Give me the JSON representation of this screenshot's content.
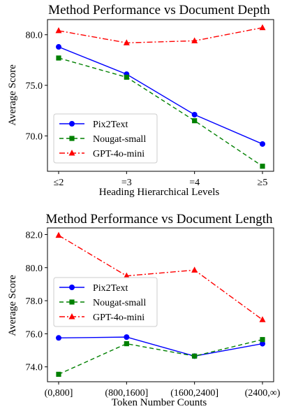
{
  "chart_data": [
    {
      "type": "line",
      "title": "Method Performance vs Document Depth",
      "xlabel": "Heading Hierarchical Levels",
      "ylabel": "Average Score",
      "categories": [
        "≤2",
        "=3",
        "=4",
        "≥5"
      ],
      "ylim": [
        66.5,
        81.5
      ],
      "yticks": [
        70.0,
        75.0,
        80.0
      ],
      "ytick_labels": [
        "70.0",
        "75.0",
        "80.0"
      ],
      "grid": false,
      "legend_position": "lower-left",
      "series": [
        {
          "name": "Pix2Text",
          "values": [
            78.8,
            76.1,
            72.1,
            69.2
          ],
          "color": "#0000ff",
          "dash": "solid",
          "marker": "circle"
        },
        {
          "name": "Nougat-small",
          "values": [
            77.7,
            75.8,
            71.5,
            67.0
          ],
          "color": "#008000",
          "dash": "dashed",
          "marker": "square"
        },
        {
          "name": "GPT-4o-mini",
          "values": [
            80.4,
            79.2,
            79.4,
            80.7
          ],
          "color": "#ff0000",
          "dash": "dashdot",
          "marker": "triangle"
        }
      ]
    },
    {
      "type": "line",
      "title": "Method Performance vs Document Length",
      "xlabel": "Token Number Counts",
      "ylabel": "Average Score",
      "categories": [
        "(0,800]",
        "(800,1600]",
        "(1600,2400]",
        "(2400,∞)"
      ],
      "ylim": [
        73.1,
        82.4
      ],
      "yticks": [
        74.0,
        76.0,
        78.0,
        80.0,
        82.0
      ],
      "ytick_labels": [
        "74.0",
        "76.0",
        "78.0",
        "80.0",
        "82.0"
      ],
      "grid": false,
      "legend_position": "center-left",
      "series": [
        {
          "name": "Pix2Text",
          "values": [
            75.75,
            75.8,
            74.65,
            75.4
          ],
          "color": "#0000ff",
          "dash": "solid",
          "marker": "circle"
        },
        {
          "name": "Nougat-small",
          "values": [
            73.55,
            75.4,
            74.65,
            75.65
          ],
          "color": "#008000",
          "dash": "dashed",
          "marker": "square"
        },
        {
          "name": "GPT-4o-mini",
          "values": [
            81.95,
            79.5,
            79.85,
            76.85
          ],
          "color": "#ff0000",
          "dash": "dashdot",
          "marker": "triangle"
        }
      ]
    }
  ]
}
